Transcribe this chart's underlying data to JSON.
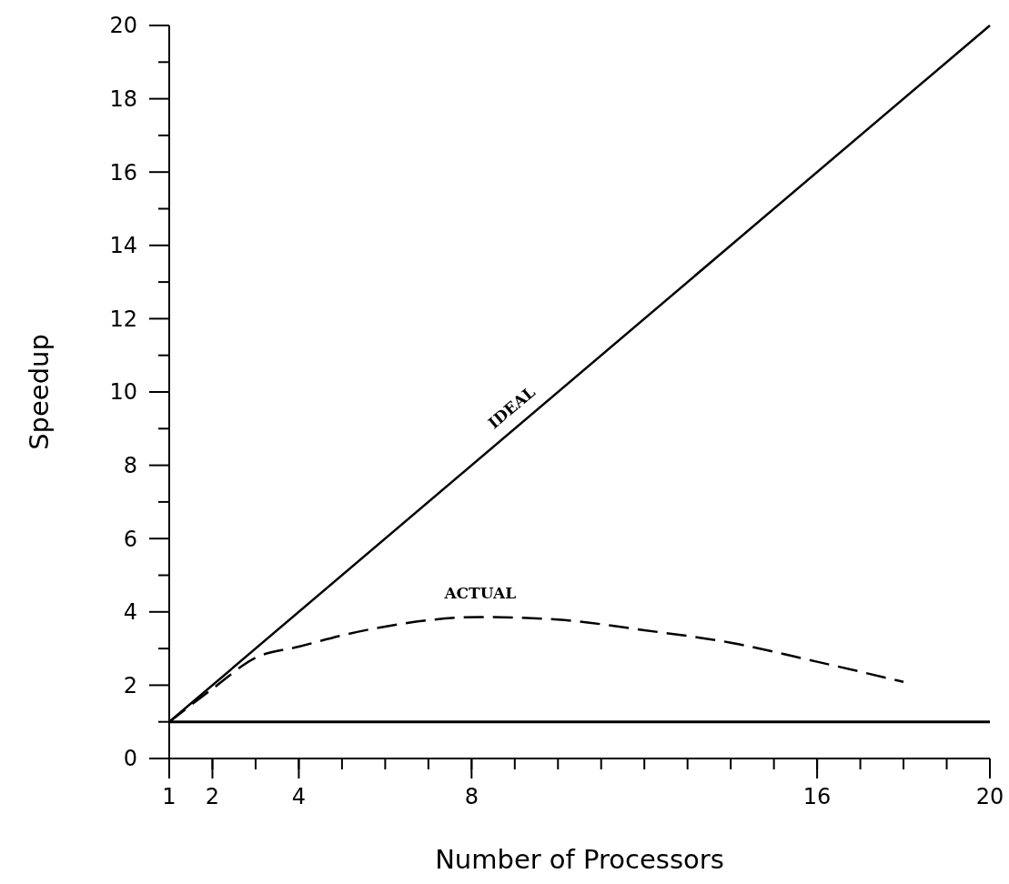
{
  "chart_data": {
    "type": "line",
    "xlabel": "Number of Processors",
    "ylabel": "Speedup",
    "xlim": [
      1,
      20
    ],
    "xticks": [
      1,
      2,
      4,
      8,
      16,
      20
    ],
    "ylim": [
      0,
      20
    ],
    "yticks": [
      0,
      2,
      4,
      6,
      8,
      10,
      12,
      14,
      16,
      18,
      20
    ],
    "series": [
      {
        "name": "IDEAL",
        "color": "#000000",
        "line_style": "solid",
        "x": [
          1,
          20
        ],
        "values": [
          1,
          20
        ]
      },
      {
        "name": "ACTUAL",
        "color": "#000000",
        "line_style": "dashed",
        "x": [
          1,
          2,
          3,
          4,
          5,
          6,
          8.2,
          10,
          12,
          14,
          16,
          18
        ],
        "values": [
          1,
          1.9,
          2.75,
          3.05,
          3.36,
          3.6,
          3.86,
          3.79,
          3.5,
          3.16,
          2.64,
          2.09
        ]
      }
    ],
    "ref_lines": [
      {
        "axis": "y",
        "value": 1,
        "color": "#000000"
      }
    ],
    "marker": "none"
  }
}
